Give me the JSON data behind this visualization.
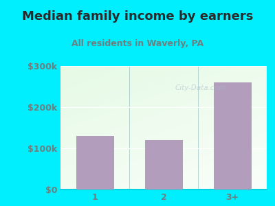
{
  "title": "Median family income by earners",
  "subtitle": "All residents in Waverly, PA",
  "categories": [
    "1",
    "2",
    "3+"
  ],
  "values": [
    130000,
    120000,
    260000
  ],
  "bar_color": "#b39dbd",
  "background_outer": "#00efff",
  "title_color": "#2a2a2a",
  "subtitle_color": "#6d8080",
  "tick_color": "#6d8080",
  "ylim": [
    0,
    300000
  ],
  "yticks": [
    0,
    100000,
    200000,
    300000
  ],
  "ytick_labels": [
    "$0",
    "$100k",
    "$200k",
    "$300k"
  ],
  "watermark": "City-Data.com",
  "title_fontsize": 13,
  "subtitle_fontsize": 9,
  "tick_fontsize": 9
}
